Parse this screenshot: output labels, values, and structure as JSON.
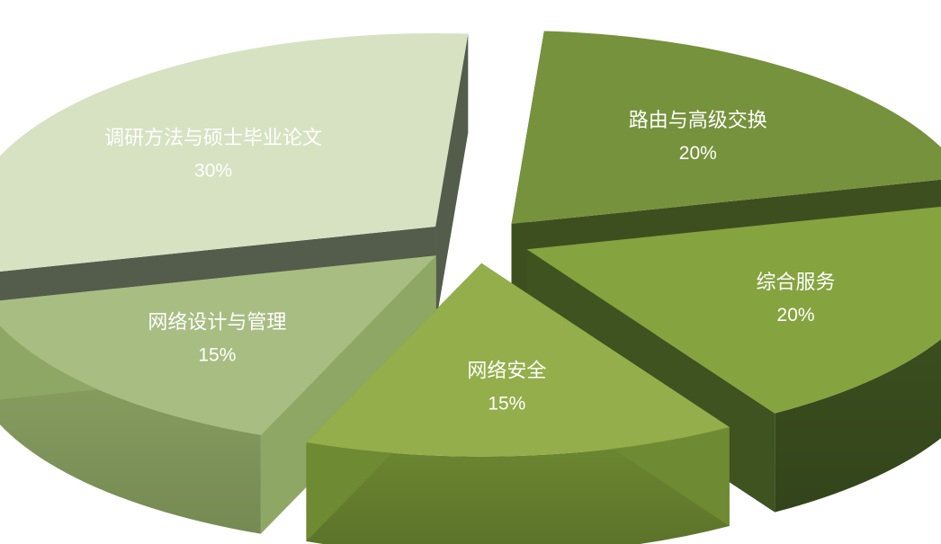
{
  "chart_data": {
    "type": "pie",
    "style": "3d-exploded",
    "legend": "none",
    "slices": [
      {
        "label": "路由与高级交换",
        "value": 20,
        "value_label": "20%",
        "top_color": "#76923c",
        "side_color": "#3d4f1f"
      },
      {
        "label": "综合服务",
        "value": 20,
        "value_label": "20%",
        "top_color": "#85a33f",
        "side_color": "#3e5320"
      },
      {
        "label": "网络安全",
        "value": 15,
        "value_label": "15%",
        "top_color": "#93ae4a",
        "side_color": "#6e8a32"
      },
      {
        "label": "网络设计与管理",
        "value": 15,
        "value_label": "15%",
        "top_color": "#a8bd82",
        "side_color": "#8fa765"
      },
      {
        "label": "调研方法与硕士毕业论文",
        "value": 30,
        "value_label": "30%",
        "top_color": "#d6e2c1",
        "side_color": "#545c4b"
      }
    ]
  }
}
